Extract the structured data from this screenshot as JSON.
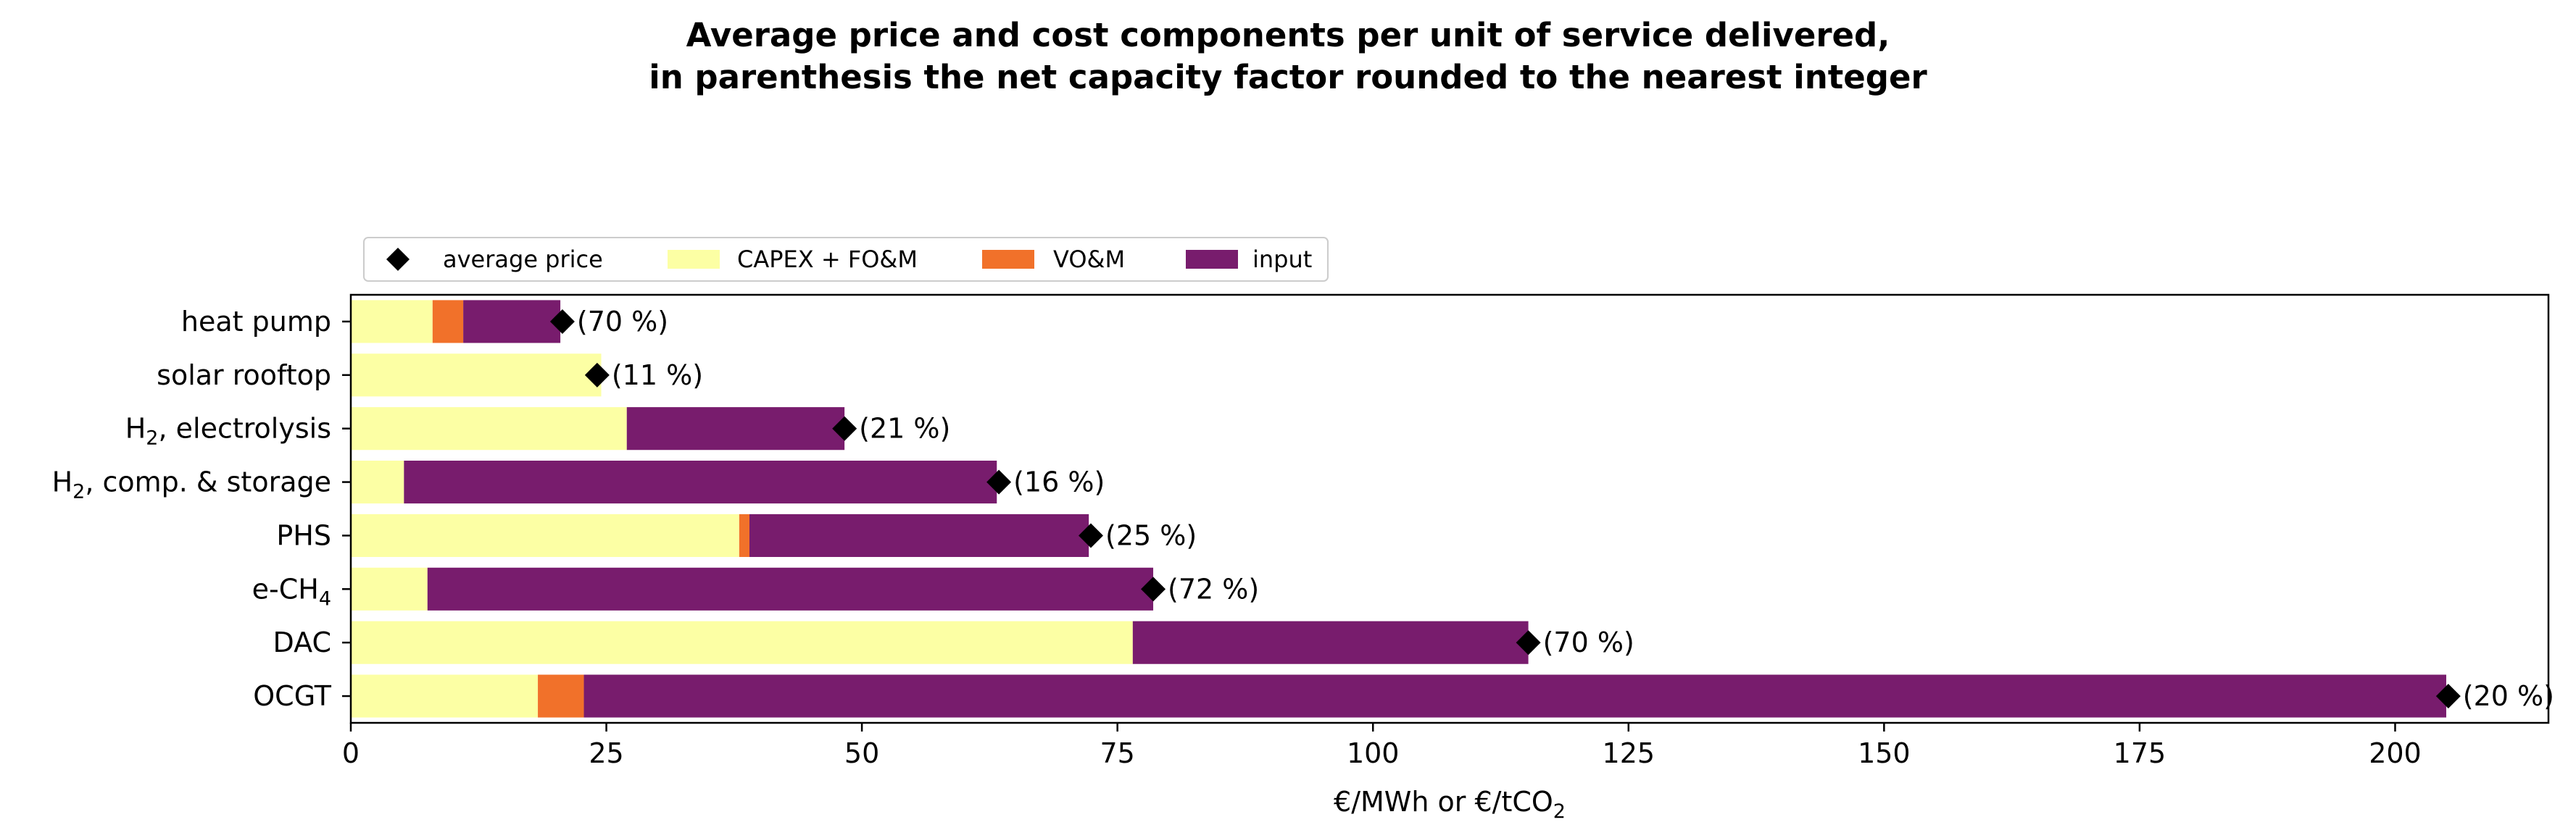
{
  "chart_data": {
    "type": "bar",
    "orientation": "horizontal",
    "stacked": true,
    "title": "Average price and cost components per unit of service delivered,",
    "subtitle": "in parenthesis the net capacity factor rounded to the nearest integer",
    "xlabel": "€/MWh or €/tCO",
    "xlabel_subscript": "2",
    "xlim": [
      0,
      215
    ],
    "xticks": [
      0,
      25,
      50,
      75,
      100,
      125,
      150,
      175,
      200
    ],
    "categories": [
      {
        "label": "heat pump",
        "sub": "",
        "suffix": ""
      },
      {
        "label": "solar rooftop",
        "sub": "",
        "suffix": ""
      },
      {
        "label": "H",
        "sub": "2",
        "suffix": ", electrolysis"
      },
      {
        "label": "H",
        "sub": "2",
        "suffix": ", comp. & storage"
      },
      {
        "label": "PHS",
        "sub": "",
        "suffix": ""
      },
      {
        "label": "e-CH",
        "sub": "4",
        "suffix": ""
      },
      {
        "label": "DAC",
        "sub": "",
        "suffix": ""
      },
      {
        "label": "OCGT",
        "sub": "",
        "suffix": ""
      }
    ],
    "series": [
      {
        "name": "CAPEX + FO&M",
        "color": "#fcffa4",
        "values": [
          8.0,
          24.5,
          27.0,
          5.2,
          38.0,
          7.5,
          76.5,
          18.3
        ]
      },
      {
        "name": "VO&M",
        "color": "#f1712a",
        "values": [
          3.0,
          0,
          0,
          0,
          1.0,
          0,
          0,
          4.5
        ]
      },
      {
        "name": "input",
        "color": "#781c6d",
        "values": [
          9.5,
          0,
          21.3,
          58.0,
          33.2,
          71.0,
          38.7,
          182.2
        ]
      }
    ],
    "average_price": {
      "name": "average price",
      "color": "#000000",
      "values": [
        20.7,
        24.1,
        48.3,
        63.4,
        72.4,
        78.5,
        115.2,
        205.2
      ]
    },
    "annotations": [
      "(70 %)",
      "(11 %)",
      "(21 %)",
      "(16 %)",
      "(25 %)",
      "(72 %)",
      "(70 %)",
      "(20 %)"
    ],
    "legend": {
      "placement": "above plot, left",
      "entries": [
        "average price",
        "CAPEX + FO&M",
        "VO&M",
        "input"
      ]
    }
  }
}
